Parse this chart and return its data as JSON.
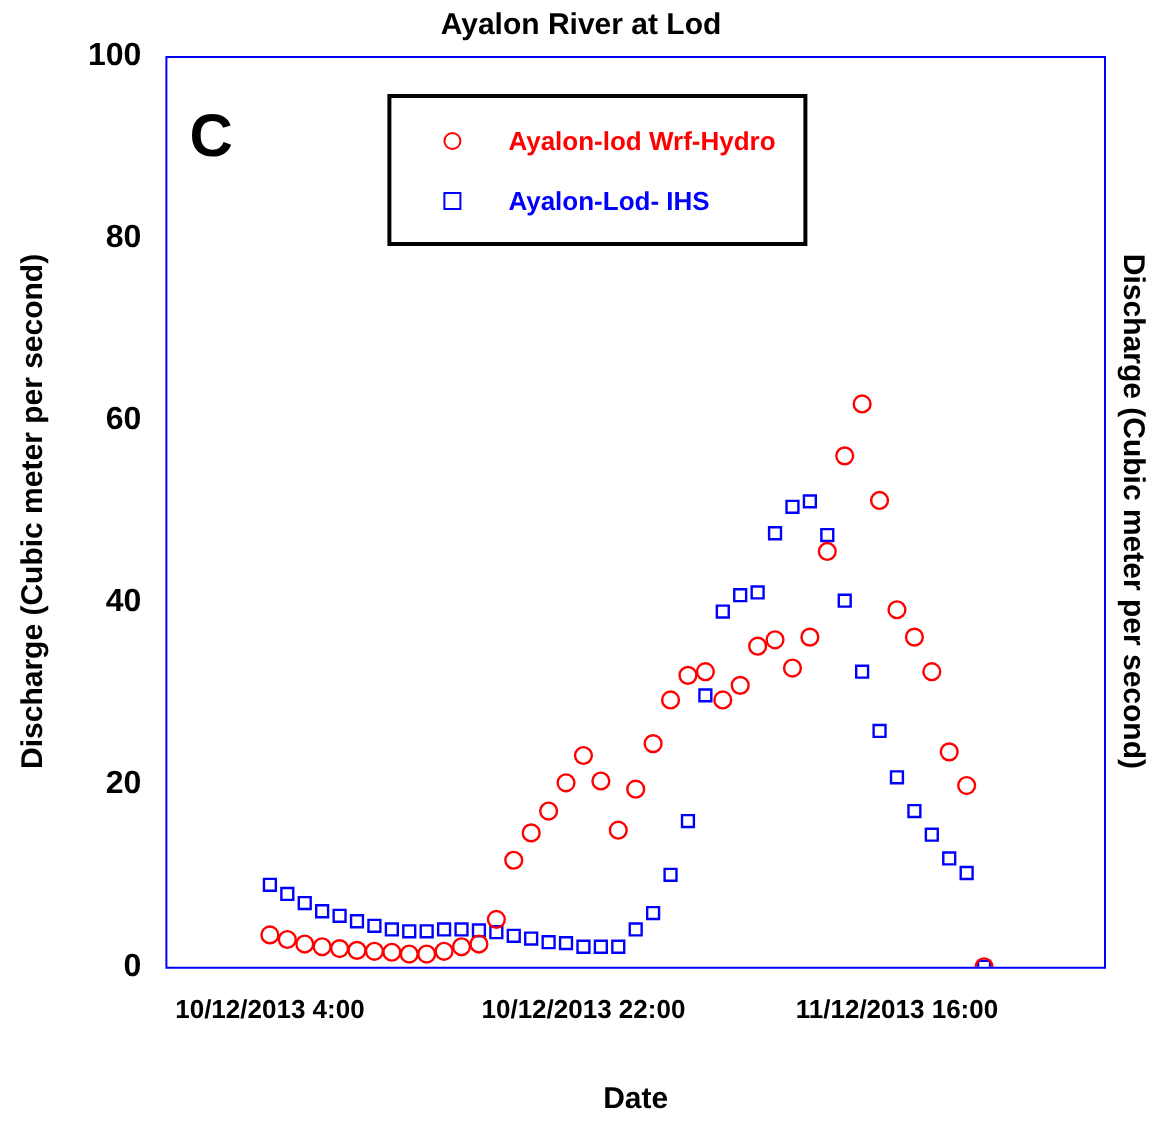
{
  "chart_data": {
    "type": "scatter",
    "title": "Ayalon River at Lod",
    "xlabel": "Date",
    "ylabel": "Discharge (Cubic meter per second)",
    "y2label": "Discharge (Cubic meter per second)",
    "annotations": [
      "C"
    ],
    "x": [
      "2013-12-10T04:00",
      "2013-12-10T05:00",
      "2013-12-10T06:00",
      "2013-12-10T07:00",
      "2013-12-10T08:00",
      "2013-12-10T09:00",
      "2013-12-10T10:00",
      "2013-12-10T11:00",
      "2013-12-10T12:00",
      "2013-12-10T13:00",
      "2013-12-10T14:00",
      "2013-12-10T15:00",
      "2013-12-10T16:00",
      "2013-12-10T17:00",
      "2013-12-10T18:00",
      "2013-12-10T19:00",
      "2013-12-10T20:00",
      "2013-12-10T21:00",
      "2013-12-10T22:00",
      "2013-12-10T23:00",
      "2013-12-11T00:00",
      "2013-12-11T01:00",
      "2013-12-11T02:00",
      "2013-12-11T03:00",
      "2013-12-11T04:00",
      "2013-12-11T05:00",
      "2013-12-11T06:00",
      "2013-12-11T07:00",
      "2013-12-11T08:00",
      "2013-12-11T09:00",
      "2013-12-11T10:00",
      "2013-12-11T11:00",
      "2013-12-11T12:00",
      "2013-12-11T13:00",
      "2013-12-11T14:00",
      "2013-12-11T15:00",
      "2013-12-11T16:00",
      "2013-12-11T17:00",
      "2013-12-11T18:00",
      "2013-12-11T19:00",
      "2013-12-11T20:00",
      "2013-12-11T21:00"
    ],
    "series": [
      {
        "name": "Ayalon-lod Wrf-Hydro",
        "color": "#ff0000",
        "marker": "circle",
        "values": [
          3.5,
          3.0,
          2.5,
          2.2,
          2.0,
          1.8,
          1.7,
          1.6,
          1.4,
          1.4,
          1.7,
          2.2,
          2.5,
          5.2,
          11.7,
          14.7,
          17.1,
          20.2,
          23.2,
          20.4,
          15.0,
          19.5,
          24.5,
          29.3,
          32.0,
          32.4,
          29.3,
          30.9,
          35.2,
          35.9,
          32.8,
          36.2,
          45.6,
          56.1,
          61.8,
          51.2,
          39.2,
          36.2,
          32.4,
          23.6,
          19.9,
          0
        ]
      },
      {
        "name": "Ayalon-Lod- IHS",
        "color": "#0000ff",
        "marker": "square",
        "values": [
          9.0,
          8.0,
          7.0,
          6.1,
          5.6,
          5.0,
          4.5,
          4.1,
          3.9,
          3.9,
          4.1,
          4.1,
          4.0,
          3.8,
          3.4,
          3.1,
          2.7,
          2.6,
          2.2,
          2.2,
          2.2,
          4.1,
          5.9,
          10.1,
          16.0,
          29.8,
          39.0,
          40.8,
          41.1,
          47.6,
          50.5,
          51.1,
          47.4,
          40.2,
          32.4,
          25.9,
          20.8,
          17.1,
          14.5,
          11.9,
          10.3,
          0
        ]
      }
    ],
    "xlim": [
      "2013-12-09T22:00",
      "2013-12-12T04:00"
    ],
    "xticks": [
      {
        "value": "2013-12-10T04:00",
        "label": "10/12/2013 4:00"
      },
      {
        "value": "2013-12-10T22:00",
        "label": "10/12/2013 22:00"
      },
      {
        "value": "2013-12-11T16:00",
        "label": "11/12/2013 16:00"
      }
    ],
    "ylim": [
      0,
      100
    ],
    "yticks": [
      0,
      20,
      40,
      60,
      80,
      100
    ],
    "grid": false,
    "legend": "top"
  }
}
